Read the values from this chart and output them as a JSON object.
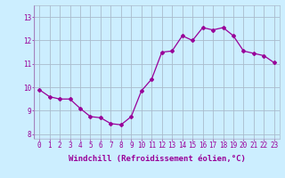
{
  "x": [
    0,
    1,
    2,
    3,
    4,
    5,
    6,
    7,
    8,
    9,
    10,
    11,
    12,
    13,
    14,
    15,
    16,
    17,
    18,
    19,
    20,
    21,
    22,
    23
  ],
  "y": [
    9.9,
    9.6,
    9.5,
    9.5,
    9.1,
    8.75,
    8.7,
    8.45,
    8.4,
    8.75,
    9.85,
    10.35,
    11.5,
    11.55,
    12.2,
    12.0,
    12.55,
    12.45,
    12.55,
    12.2,
    11.55,
    11.45,
    11.35,
    11.05
  ],
  "line_color": "#990099",
  "marker": "D",
  "marker_size": 2,
  "bg_color": "#cceeff",
  "grid_color": "#aabbcc",
  "xlabel": "Windchill (Refroidissement éolien,°C)",
  "ylim": [
    7.8,
    13.5
  ],
  "xlim": [
    -0.5,
    23.5
  ],
  "yticks": [
    8,
    9,
    10,
    11,
    12,
    13
  ],
  "xtick_labels": [
    "0",
    "1",
    "2",
    "3",
    "4",
    "5",
    "6",
    "7",
    "8",
    "9",
    "10",
    "11",
    "12",
    "13",
    "14",
    "15",
    "16",
    "17",
    "18",
    "19",
    "20",
    "21",
    "22",
    "23"
  ],
  "font_color": "#990099",
  "tick_fontsize": 5.5,
  "label_fontsize": 6.5
}
